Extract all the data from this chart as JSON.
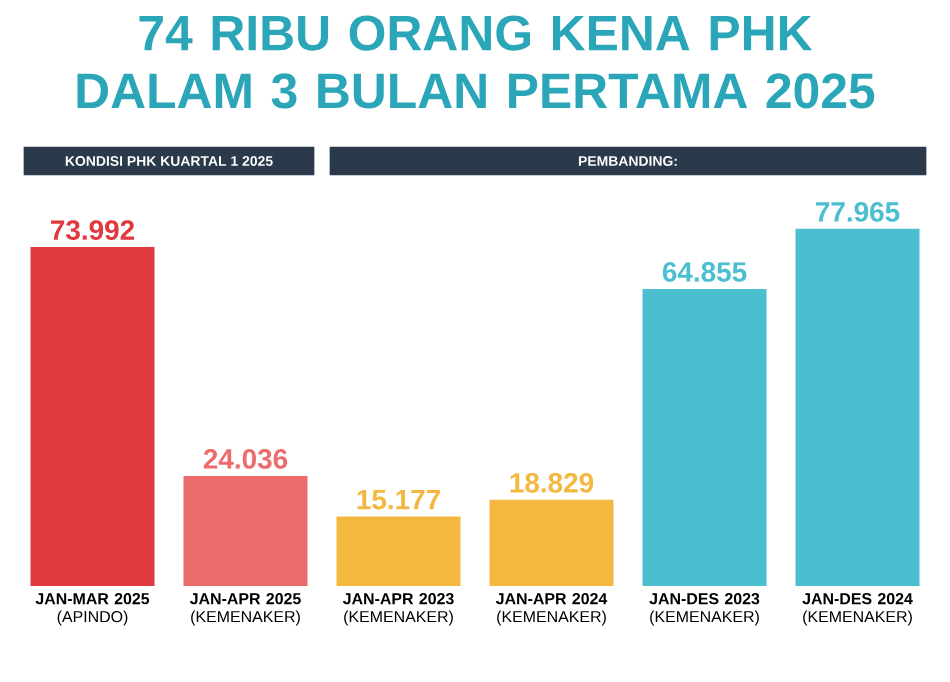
{
  "chart_data": {
    "type": "bar",
    "title": "74 RIBU ORANG KENA PHK DALAM 3 BULAN PERTAMA 2025",
    "annotations": [
      "KONDISI PHK KUARTAL 1 2025",
      "PEMBANDING:"
    ],
    "categories": [
      "**JAN-MAR 2025** (APINDO)",
      "**JAN-APR 2025** (KEMENAKER)",
      "**JAN-APR 2023** (KEMENAKER)",
      "**JAN-APR 2024** (KEMENAKER)",
      "**JAN-DES 2023** (KEMENAKER)",
      "**JAN-DES 2024** (KEMENAKER)"
    ],
    "values": [
      73992,
      24036,
      15177,
      18829,
      64855,
      77965
    ],
    "value_labels": [
      "73.992",
      "24.036",
      "15.177",
      "18.829",
      "64.855",
      "77.965"
    ],
    "colors": [
      "#e03a3e",
      "#ec6b6b",
      "#f4b840",
      "#f4b840",
      "#4bbfcf",
      "#4bbfcf"
    ]
  }
}
